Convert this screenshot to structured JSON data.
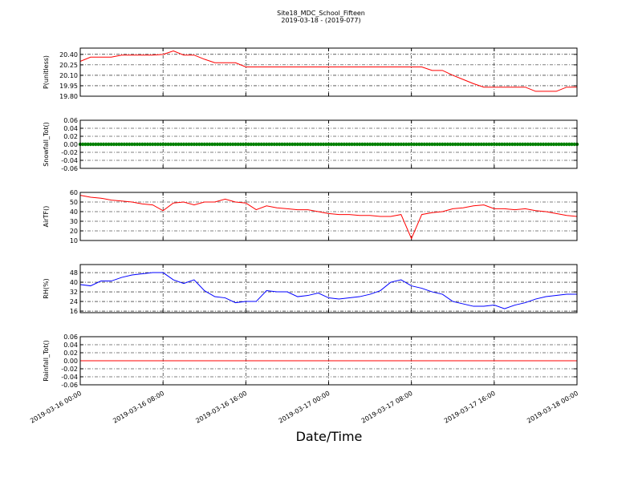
{
  "title": "Site18_MDC_School_Fifteen",
  "subtitle": "2019-03-18 - (2019-077)",
  "xlabel": "Date/Time",
  "xlim": [
    "2019-03-16 00:00",
    "2019-03-18 00:00"
  ],
  "xticks": [
    "2019-03-16 00:00",
    "2019-03-16 08:00",
    "2019-03-16 16:00",
    "2019-03-17 00:00",
    "2019-03-17 08:00",
    "2019-03-17 16:00",
    "2019-03-18 00:00"
  ],
  "x": [
    "2019-03-16 00:00",
    "2019-03-16 01:00",
    "2019-03-16 02:00",
    "2019-03-16 03:00",
    "2019-03-16 04:00",
    "2019-03-16 05:00",
    "2019-03-16 06:00",
    "2019-03-16 07:00",
    "2019-03-16 08:00",
    "2019-03-16 09:00",
    "2019-03-16 10:00",
    "2019-03-16 11:00",
    "2019-03-16 12:00",
    "2019-03-16 13:00",
    "2019-03-16 14:00",
    "2019-03-16 15:00",
    "2019-03-16 16:00",
    "2019-03-16 17:00",
    "2019-03-16 18:00",
    "2019-03-16 19:00",
    "2019-03-16 20:00",
    "2019-03-16 21:00",
    "2019-03-16 22:00",
    "2019-03-16 23:00",
    "2019-03-17 00:00",
    "2019-03-17 01:00",
    "2019-03-17 02:00",
    "2019-03-17 03:00",
    "2019-03-17 04:00",
    "2019-03-17 05:00",
    "2019-03-17 06:00",
    "2019-03-17 07:00",
    "2019-03-17 08:00",
    "2019-03-17 09:00",
    "2019-03-17 10:00",
    "2019-03-17 11:00",
    "2019-03-17 12:00",
    "2019-03-17 13:00",
    "2019-03-17 14:00",
    "2019-03-17 15:00",
    "2019-03-17 16:00",
    "2019-03-17 17:00",
    "2019-03-17 18:00",
    "2019-03-17 19:00",
    "2019-03-17 20:00",
    "2019-03-17 21:00",
    "2019-03-17 22:00",
    "2019-03-17 23:00",
    "2019-03-18 00:00"
  ],
  "chart_data": [
    {
      "type": "line",
      "ylabel": "P(unitless)",
      "color": "#ff0000",
      "grid": true,
      "ylim": [
        19.8,
        20.49
      ],
      "yticks": [
        {
          "value": 19.8,
          "label": "19.80"
        },
        {
          "value": 19.95,
          "label": "19.95"
        },
        {
          "value": 20.1,
          "label": "20.10"
        },
        {
          "value": 20.25,
          "label": "20.25"
        },
        {
          "value": 20.4,
          "label": "20.40"
        }
      ],
      "values": [
        20.3,
        20.36,
        20.36,
        20.36,
        20.39,
        20.39,
        20.39,
        20.39,
        20.4,
        20.45,
        20.39,
        20.39,
        20.33,
        20.28,
        20.28,
        20.28,
        20.22,
        20.22,
        20.22,
        20.22,
        20.22,
        20.22,
        20.22,
        20.22,
        20.22,
        20.22,
        20.22,
        20.22,
        20.22,
        20.22,
        20.22,
        20.22,
        20.22,
        20.22,
        20.17,
        20.17,
        20.1,
        20.04,
        19.98,
        19.93,
        19.93,
        19.93,
        19.93,
        19.93,
        19.87,
        19.87,
        19.87,
        19.93,
        19.93
      ]
    },
    {
      "type": "scatter",
      "ylabel": "Snowfall_Tot()",
      "color": "#008000",
      "grid": true,
      "ylim": [
        -0.06,
        0.06
      ],
      "yticks": [
        -0.06,
        -0.04,
        -0.02,
        {
          "value": 0,
          "label": "0.00"
        },
        0.02,
        0.04,
        0.06
      ],
      "values": [
        0,
        0,
        0,
        0,
        0,
        0,
        0,
        0,
        0,
        0,
        0,
        0,
        0,
        0,
        0,
        0,
        0,
        0,
        0,
        0,
        0,
        0,
        0,
        0,
        0,
        0,
        0,
        0,
        0,
        0,
        0,
        0,
        0,
        0,
        0,
        0,
        0,
        0,
        0,
        0,
        0,
        0,
        0,
        0,
        0,
        0,
        0,
        0,
        0
      ]
    },
    {
      "type": "line",
      "ylabel": "AirTF()",
      "color": "#ff0000",
      "grid": true,
      "ylim": [
        10,
        60
      ],
      "yticks": [
        10,
        20,
        30,
        40,
        50,
        60
      ],
      "values": [
        57,
        55,
        54,
        52,
        51,
        50,
        48,
        47,
        41,
        49,
        50,
        47,
        50,
        50,
        53,
        50,
        49,
        42,
        46,
        44,
        43,
        42,
        42,
        40,
        38,
        37,
        37,
        36,
        36,
        35,
        35,
        37,
        12,
        37,
        39,
        40,
        43,
        44,
        46,
        47,
        43,
        43,
        42,
        43,
        41,
        40,
        38,
        36,
        35
      ]
    },
    {
      "type": "line",
      "ylabel": "RH(%)",
      "color": "#0000ff",
      "grid": true,
      "ylim": [
        14.7,
        54.7
      ],
      "yticks": [
        16,
        24,
        32,
        40,
        48
      ],
      "values": [
        38,
        37,
        41,
        41,
        44,
        46,
        47,
        48,
        48,
        42,
        39,
        42,
        33,
        28,
        27,
        23,
        24,
        24,
        33,
        32,
        32,
        28,
        29,
        31,
        27,
        26,
        27,
        28,
        30,
        33,
        40,
        42,
        37,
        35,
        32,
        30,
        24,
        22,
        20,
        20,
        21,
        18,
        21,
        23,
        26,
        28,
        29,
        30,
        30
      ]
    },
    {
      "type": "line",
      "ylabel": "Rainfall_Tot()",
      "color": "#ff0000",
      "grid": true,
      "ylim": [
        -0.06,
        0.06
      ],
      "yticks": [
        -0.06,
        -0.04,
        -0.02,
        {
          "value": 0,
          "label": "0.00"
        },
        0.02,
        0.04,
        0.06
      ],
      "values": [
        0,
        0,
        0,
        0,
        0,
        0,
        0,
        0,
        0,
        0,
        0,
        0,
        0,
        0,
        0,
        0,
        0,
        0,
        0,
        0,
        0,
        0,
        0,
        0,
        0,
        0,
        0,
        0,
        0,
        0,
        0,
        0,
        0,
        0,
        0,
        0,
        0,
        0,
        0,
        0,
        0,
        0,
        0,
        0,
        0,
        0,
        0,
        0,
        0
      ]
    }
  ]
}
